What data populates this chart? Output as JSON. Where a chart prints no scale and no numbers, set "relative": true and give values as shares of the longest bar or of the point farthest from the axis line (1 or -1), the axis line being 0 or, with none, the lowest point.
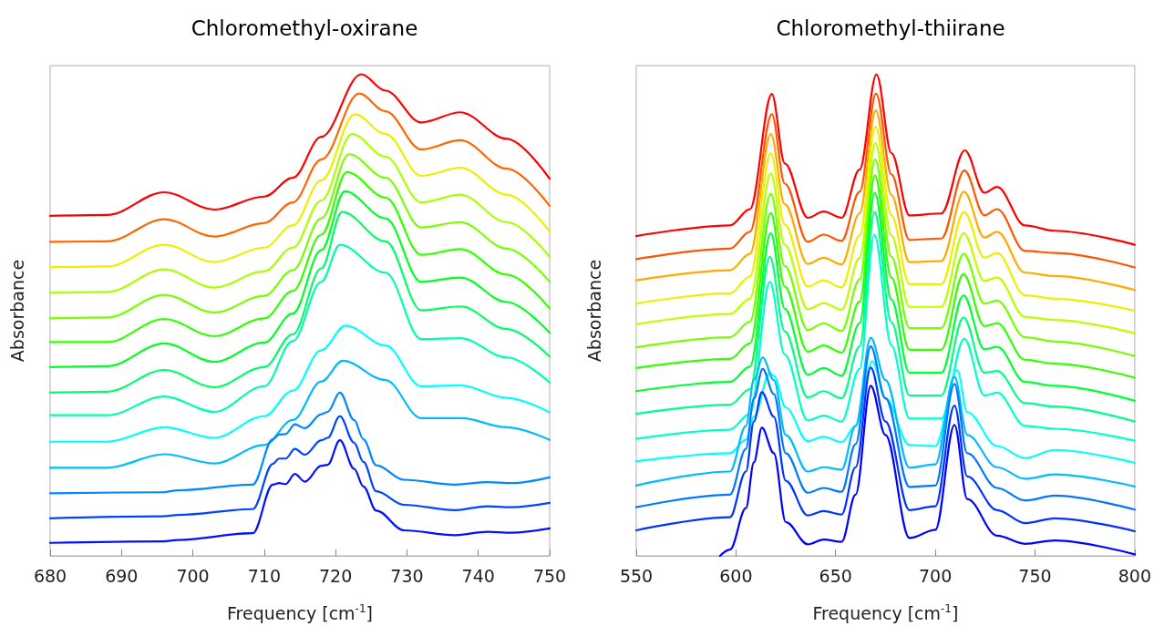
{
  "chart_data": [
    {
      "type": "line",
      "title": "Chloromethyl-oxirane",
      "xlabel": "Frequency [cm$^{-1}$]",
      "ylabel": "Absorbance",
      "relative": true,
      "tick_labels": "x",
      "marker": "none",
      "xlim": [
        680,
        750
      ],
      "xticks": [
        680,
        690,
        700,
        710,
        720,
        730,
        740,
        750
      ],
      "series": [
        {
          "color": "#ff0000",
          "x": [
            680,
            688,
            696,
            703,
            710,
            714,
            718,
            723.6,
            727,
            732,
            737.5,
            744,
            750
          ],
          "values": [
            0.706,
            0.708,
            0.755,
            0.719,
            0.746,
            0.785,
            0.87,
            1.0,
            0.966,
            0.9,
            0.921,
            0.866,
            0.783
          ]
        },
        {
          "color": "#ff6600",
          "x": [
            680,
            688,
            696,
            703,
            710,
            714,
            718,
            723.3,
            727,
            732,
            737.5,
            744,
            750
          ],
          "values": [
            0.652,
            0.653,
            0.699,
            0.663,
            0.691,
            0.734,
            0.823,
            0.96,
            0.923,
            0.844,
            0.863,
            0.804,
            0.727
          ]
        },
        {
          "color": "#eeee00",
          "x": [
            680,
            688,
            696,
            703,
            710,
            714,
            718,
            722.7,
            727,
            732,
            737.5,
            744,
            750
          ],
          "values": [
            0.599,
            0.601,
            0.646,
            0.61,
            0.64,
            0.686,
            0.78,
            0.917,
            0.876,
            0.789,
            0.806,
            0.75,
            0.674
          ]
        },
        {
          "color": "#aaff00",
          "x": [
            680,
            688,
            696,
            703,
            710,
            714,
            718,
            722.3,
            727,
            732,
            737.5,
            744,
            750
          ],
          "values": [
            0.546,
            0.548,
            0.595,
            0.557,
            0.591,
            0.64,
            0.738,
            0.876,
            0.829,
            0.734,
            0.75,
            0.693,
            0.621
          ]
        },
        {
          "color": "#77ff00",
          "x": [
            680,
            688,
            696,
            703,
            710,
            714,
            718,
            721.9,
            727,
            732,
            737.5,
            744,
            750
          ],
          "values": [
            0.493,
            0.495,
            0.542,
            0.505,
            0.54,
            0.593,
            0.701,
            0.834,
            0.785,
            0.682,
            0.693,
            0.638,
            0.569
          ]
        },
        {
          "color": "#33ff00",
          "x": [
            680,
            688,
            696,
            703,
            710,
            714,
            718,
            721.6,
            727,
            732,
            737.5,
            744,
            750
          ],
          "values": [
            0.444,
            0.444,
            0.492,
            0.456,
            0.493,
            0.55,
            0.667,
            0.797,
            0.744,
            0.625,
            0.637,
            0.584,
            0.514
          ]
        },
        {
          "color": "#00ff22",
          "x": [
            680,
            688,
            696,
            703,
            710,
            714,
            718,
            721.3,
            727,
            732,
            737.5,
            744,
            750
          ],
          "values": [
            0.392,
            0.394,
            0.441,
            0.403,
            0.443,
            0.503,
            0.635,
            0.757,
            0.701,
            0.569,
            0.578,
            0.527,
            0.463
          ]
        },
        {
          "color": "#00ff66",
          "x": [
            680,
            688,
            696,
            703,
            710,
            714,
            718,
            720.9,
            727,
            732,
            737.5,
            744,
            750
          ],
          "values": [
            0.339,
            0.341,
            0.386,
            0.35,
            0.392,
            0.46,
            0.597,
            0.714,
            0.653,
            0.51,
            0.518,
            0.471,
            0.414
          ]
        },
        {
          "color": "#00ffaa",
          "x": [
            680,
            688,
            696,
            703,
            710,
            714,
            718,
            720.6,
            727,
            732,
            737.5,
            744,
            750
          ],
          "values": [
            0.292,
            0.292,
            0.331,
            0.299,
            0.352,
            0.446,
            0.569,
            0.646,
            0.588,
            0.45,
            0.452,
            0.412,
            0.36
          ]
        },
        {
          "color": "#00ffff",
          "x": [
            680,
            688,
            696,
            703,
            710,
            714,
            718,
            721.4,
            727,
            732,
            737.5,
            744,
            750
          ],
          "values": [
            0.237,
            0.237,
            0.267,
            0.245,
            0.29,
            0.343,
            0.427,
            0.478,
            0.437,
            0.352,
            0.354,
            0.328,
            0.298
          ]
        },
        {
          "color": "#00bbff",
          "x": [
            680,
            688,
            696,
            703,
            710,
            714,
            718,
            721.0,
            727,
            732,
            737.5,
            744,
            750
          ],
          "values": [
            0.183,
            0.183,
            0.211,
            0.192,
            0.23,
            0.282,
            0.362,
            0.405,
            0.365,
            0.286,
            0.286,
            0.267,
            0.241
          ]
        },
        {
          "color": "#0088ff",
          "x": [
            680,
            695.8,
            697.9,
            708.4,
            711.2,
            712.1,
            713.0,
            714.3,
            715.7,
            718.0,
            718.9,
            720.6,
            722.6,
            723.9,
            725.7,
            729.6,
            736.7,
            741.3,
            744.6,
            750
          ],
          "values": [
            0.13,
            0.132,
            0.136,
            0.148,
            0.242,
            0.252,
            0.253,
            0.273,
            0.265,
            0.294,
            0.299,
            0.339,
            0.282,
            0.242,
            0.188,
            0.158,
            0.148,
            0.153,
            0.151,
            0.163
          ]
        },
        {
          "color": "#0044ff",
          "x": [
            680,
            695.8,
            697.9,
            708.4,
            711.2,
            712.1,
            713.0,
            714.3,
            715.7,
            718.0,
            718.9,
            720.6,
            722.6,
            723.9,
            725.7,
            729.6,
            736.7,
            741.3,
            744.6,
            750
          ],
          "values": [
            0.078,
            0.082,
            0.085,
            0.097,
            0.191,
            0.202,
            0.202,
            0.222,
            0.21,
            0.24,
            0.245,
            0.29,
            0.235,
            0.195,
            0.134,
            0.106,
            0.095,
            0.103,
            0.101,
            0.11
          ]
        },
        {
          "color": "#0011ff",
          "x": [
            680,
            695.8,
            697.9,
            708.4,
            711.2,
            712.1,
            713.0,
            714.3,
            715.7,
            718.0,
            718.9,
            720.6,
            722.6,
            723.9,
            725.7,
            729.6,
            736.7,
            741.3,
            744.6,
            750
          ],
          "values": [
            0.027,
            0.03,
            0.033,
            0.047,
            0.148,
            0.151,
            0.149,
            0.17,
            0.154,
            0.187,
            0.189,
            0.24,
            0.181,
            0.144,
            0.094,
            0.053,
            0.043,
            0.05,
            0.048,
            0.057
          ]
        }
      ]
    },
    {
      "type": "line",
      "title": "Chloromethyl-thiirane",
      "xlabel": "Frequency [cm$^{-1}$]",
      "ylabel": "Absorbance",
      "relative": true,
      "tick_labels": "x",
      "marker": "none",
      "xlim": [
        550,
        800
      ],
      "xticks": [
        550,
        600,
        650,
        700,
        750,
        800
      ],
      "series": [
        {
          "color": "#ff0000",
          "x": [
            550,
            597,
            607,
            618,
            624.5,
            636,
            644,
            653,
            662,
            670.5,
            678,
            687,
            703,
            714.8,
            724.6,
            731,
            745,
            760,
            800
          ],
          "values": [
            0.664,
            0.686,
            0.72,
            0.959,
            0.815,
            0.702,
            0.715,
            0.702,
            0.802,
            1.0,
            0.836,
            0.707,
            0.711,
            0.842,
            0.754,
            0.766,
            0.686,
            0.675,
            0.646
          ]
        },
        {
          "color": "#ff5500",
          "x": [
            550,
            597,
            607,
            618,
            624.5,
            636,
            644,
            653,
            662,
            670.3,
            678,
            687,
            703,
            714.6,
            724.6,
            731,
            745,
            760,
            800
          ],
          "values": [
            0.616,
            0.638,
            0.673,
            0.917,
            0.773,
            0.652,
            0.667,
            0.654,
            0.756,
            0.96,
            0.792,
            0.656,
            0.659,
            0.8,
            0.707,
            0.72,
            0.633,
            0.629,
            0.599
          ]
        },
        {
          "color": "#ffaa00",
          "x": [
            550,
            597,
            607,
            617.5,
            624.5,
            636,
            644,
            653,
            662,
            670.1,
            678,
            687,
            703,
            714.4,
            724.6,
            731,
            745,
            760,
            800
          ],
          "values": [
            0.572,
            0.593,
            0.627,
            0.876,
            0.73,
            0.606,
            0.619,
            0.605,
            0.711,
            0.925,
            0.749,
            0.61,
            0.612,
            0.756,
            0.661,
            0.673,
            0.588,
            0.581,
            0.552
          ]
        },
        {
          "color": "#eeee00",
          "x": [
            550,
            597,
            607,
            617.5,
            624.5,
            636,
            644,
            653,
            662,
            670.0,
            678,
            687,
            703,
            714.4,
            724.6,
            731,
            745,
            760,
            800
          ],
          "values": [
            0.524,
            0.545,
            0.58,
            0.836,
            0.688,
            0.559,
            0.572,
            0.557,
            0.665,
            0.891,
            0.707,
            0.564,
            0.564,
            0.714,
            0.619,
            0.629,
            0.541,
            0.534,
            0.509
          ]
        },
        {
          "color": "#bbff00",
          "x": [
            550,
            597,
            607,
            617.5,
            624.5,
            636,
            644,
            653,
            662,
            669.9,
            678,
            687,
            703,
            714.2,
            724.6,
            731,
            745,
            760,
            800
          ],
          "values": [
            0.481,
            0.502,
            0.534,
            0.794,
            0.646,
            0.512,
            0.525,
            0.511,
            0.619,
            0.857,
            0.665,
            0.517,
            0.517,
            0.67,
            0.571,
            0.578,
            0.496,
            0.49,
            0.462
          ]
        },
        {
          "color": "#77ff00",
          "x": [
            550,
            597,
            607,
            617.5,
            624.5,
            636,
            644,
            653,
            662,
            669.8,
            678,
            687,
            703,
            714.2,
            724.6,
            731,
            745,
            760,
            800
          ],
          "values": [
            0.433,
            0.454,
            0.486,
            0.752,
            0.602,
            0.469,
            0.483,
            0.467,
            0.574,
            0.823,
            0.621,
            0.473,
            0.473,
            0.627,
            0.524,
            0.53,
            0.454,
            0.445,
            0.415
          ]
        },
        {
          "color": "#33ff00",
          "x": [
            550,
            597,
            607,
            617.5,
            624.5,
            636,
            644,
            653,
            662,
            669.7,
            678,
            687,
            703,
            714.1,
            724.6,
            731,
            745,
            760,
            800
          ],
          "values": [
            0.39,
            0.409,
            0.441,
            0.712,
            0.559,
            0.424,
            0.437,
            0.422,
            0.528,
            0.79,
            0.578,
            0.428,
            0.428,
            0.585,
            0.477,
            0.483,
            0.407,
            0.399,
            0.37
          ]
        },
        {
          "color": "#00ff33",
          "x": [
            550,
            597,
            607,
            617.5,
            624.5,
            636,
            644,
            653,
            662,
            669.6,
            678,
            687,
            703,
            714.1,
            724.6,
            731,
            745,
            760,
            800
          ],
          "values": [
            0.342,
            0.361,
            0.393,
            0.67,
            0.513,
            0.376,
            0.39,
            0.374,
            0.483,
            0.754,
            0.532,
            0.38,
            0.38,
            0.541,
            0.429,
            0.434,
            0.361,
            0.353,
            0.322
          ]
        },
        {
          "color": "#00ff88",
          "x": [
            550,
            597,
            607,
            617,
            624.5,
            636,
            644,
            653,
            662,
            669.5,
            678,
            687,
            703,
            714.1,
            724.6,
            731,
            745,
            760,
            800
          ],
          "values": [
            0.295,
            0.314,
            0.346,
            0.621,
            0.466,
            0.329,
            0.342,
            0.327,
            0.435,
            0.714,
            0.485,
            0.333,
            0.333,
            0.495,
            0.38,
            0.384,
            0.317,
            0.31,
            0.279
          ]
        },
        {
          "color": "#00ffcc",
          "x": [
            550,
            597,
            607,
            617,
            624.5,
            636,
            644,
            653,
            662,
            669.4,
            678,
            687,
            703,
            714.5,
            724.6,
            731,
            745,
            760,
            800
          ],
          "values": [
            0.243,
            0.262,
            0.295,
            0.569,
            0.418,
            0.281,
            0.291,
            0.279,
            0.388,
            0.667,
            0.437,
            0.285,
            0.285,
            0.451,
            0.333,
            0.339,
            0.27,
            0.264,
            0.239
          ]
        },
        {
          "color": "#00ffff",
          "x": [
            550,
            597,
            605,
            609,
            617,
            619,
            625,
            636,
            644,
            653,
            660,
            668.4,
            675,
            687,
            700,
            711,
            716,
            731,
            745,
            760,
            800
          ],
          "values": [
            0.196,
            0.213,
            0.241,
            0.289,
            0.38,
            0.374,
            0.308,
            0.238,
            0.247,
            0.236,
            0.27,
            0.404,
            0.327,
            0.23,
            0.228,
            0.386,
            0.298,
            0.228,
            0.203,
            0.22,
            0.193
          ]
        },
        {
          "color": "#00bbff",
          "x": [
            550,
            597,
            605,
            609,
            613.4,
            619,
            625,
            636,
            644,
            653,
            660,
            667.6,
            675,
            687,
            700,
            709.6,
            716,
            731,
            745,
            760,
            800
          ],
          "values": [
            0.146,
            0.175,
            0.27,
            0.365,
            0.412,
            0.365,
            0.251,
            0.175,
            0.184,
            0.179,
            0.27,
            0.453,
            0.365,
            0.183,
            0.19,
            0.372,
            0.251,
            0.184,
            0.16,
            0.169,
            0.144
          ]
        },
        {
          "color": "#0077ff",
          "x": [
            550,
            597,
            605,
            609,
            613.4,
            619,
            625,
            636,
            644,
            653,
            660,
            667.6,
            675,
            687,
            700,
            709.6,
            716,
            731,
            745,
            760,
            800
          ],
          "values": [
            0.101,
            0.127,
            0.222,
            0.327,
            0.388,
            0.336,
            0.213,
            0.131,
            0.141,
            0.133,
            0.232,
            0.435,
            0.327,
            0.143,
            0.146,
            0.357,
            0.213,
            0.141,
            0.115,
            0.125,
            0.096
          ]
        },
        {
          "color": "#0033ff",
          "x": [
            550,
            597,
            605,
            609,
            613,
            619,
            625,
            636,
            644,
            653,
            660,
            667.6,
            675,
            687,
            700,
            709.6,
            716,
            731,
            745,
            760,
            800
          ],
          "values": [
            0.053,
            0.08,
            0.175,
            0.279,
            0.34,
            0.289,
            0.156,
            0.084,
            0.093,
            0.086,
            0.184,
            0.391,
            0.279,
            0.095,
            0.103,
            0.312,
            0.165,
            0.095,
            0.068,
            0.078,
            0.051
          ]
        },
        {
          "color": "#0000ff",
          "x": [
            592,
            597,
            605,
            609,
            613,
            619,
            625,
            636,
            644,
            653,
            660,
            667.6,
            675,
            687,
            700,
            709.6,
            716,
            731,
            745,
            760,
            800
          ],
          "values": [
            0,
            0.013,
            0.099,
            0.194,
            0.266,
            0.213,
            0.07,
            0.024,
            0.034,
            0.029,
            0.127,
            0.353,
            0.251,
            0.037,
            0.054,
            0.272,
            0.118,
            0.042,
            0.025,
            0.032,
            0.003
          ]
        }
      ]
    }
  ]
}
